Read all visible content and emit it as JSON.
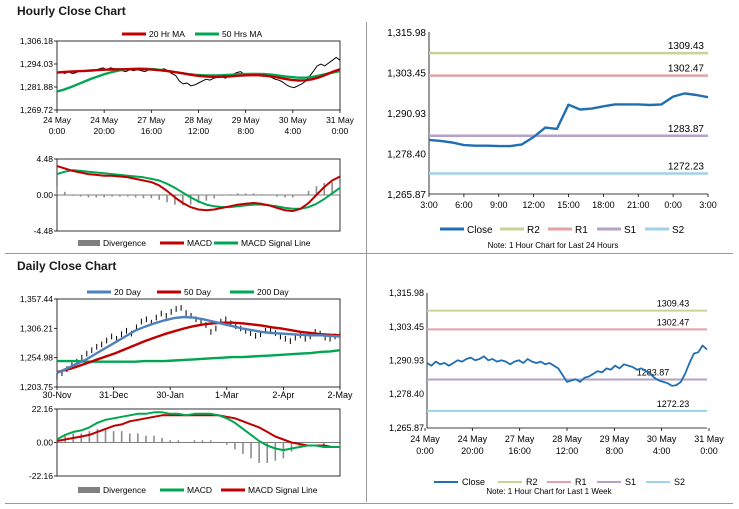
{
  "headings": {
    "hourly": "Hourly Close Chart",
    "daily": "Daily Close Chart"
  },
  "chart_data": [
    {
      "id": "hourly-price",
      "type": "line",
      "legend": [
        "20 Hr MA",
        "50 Hrs MA"
      ],
      "ylim": [
        1269.72,
        1306.18
      ],
      "yticks": [
        "1,306.18",
        "1,294.03",
        "1,281.88",
        "1,269.72"
      ],
      "xticks": [
        [
          "24 May",
          "0:00"
        ],
        [
          "24 May",
          "20:00"
        ],
        [
          "27 May",
          "16:00"
        ],
        [
          "28 May",
          "12:00"
        ],
        [
          "29 May",
          "8:00"
        ],
        [
          "30 May",
          "4:00"
        ],
        [
          "31 May",
          "0:00"
        ]
      ],
      "series": [
        {
          "name": "Close",
          "color": "#000000",
          "values": [
            1289.5,
            1290.0,
            1289.0,
            1290.0,
            1289.0,
            1289.5,
            1290.5,
            1290.0,
            1290.5,
            1291.0,
            1290.5,
            1291.5,
            1292.0,
            1291.0,
            1292.0,
            1291.5,
            1291.5,
            1290.5,
            1290.0,
            1291.0,
            1290.5,
            1291.0,
            1290.5,
            1290.0,
            1291.0,
            1291.5,
            1290.5,
            1291.0,
            1291.5,
            1290.5,
            1289.0,
            1288.0,
            1285.0,
            1283.5,
            1284.0,
            1282.5,
            1283.0,
            1284.0,
            1285.0,
            1286.0,
            1285.5,
            1286.5,
            1287.0,
            1287.5,
            1286.5,
            1288.0,
            1288.5,
            1289.5,
            1290.0,
            1288.5,
            1289.0,
            1288.5,
            1289.0,
            1288.5,
            1287.5,
            1288.0,
            1287.0,
            1286.0,
            1285.5,
            1284.5,
            1283.0,
            1282.0,
            1281.5,
            1282.5,
            1283.5,
            1285.0,
            1287.5,
            1290.0,
            1293.0,
            1294.0,
            1293.0,
            1294.5,
            1296.0,
            1297.5,
            1296.0
          ]
        },
        {
          "name": "20 Hr MA",
          "color": "#c00000",
          "values": [
            1289.5,
            1289.8,
            1290.0,
            1290.2,
            1290.4,
            1290.6,
            1290.8,
            1291.0,
            1291.1,
            1291.2,
            1291.3,
            1291.3,
            1291.3,
            1291.2,
            1291.0,
            1290.7,
            1290.3,
            1289.8,
            1289.2,
            1288.6,
            1288.0,
            1287.6,
            1287.3,
            1287.2,
            1287.3,
            1287.5,
            1287.8,
            1288.0,
            1288.1,
            1288.1,
            1287.9,
            1287.5,
            1286.9,
            1286.2,
            1285.6,
            1285.3,
            1285.4,
            1286.0,
            1287.0,
            1288.4,
            1290.0,
            1291.2
          ]
        },
        {
          "name": "50 Hrs MA",
          "color": "#00a651",
          "values": [
            1279.5,
            1280.5,
            1281.8,
            1283.3,
            1284.8,
            1286.3,
            1287.6,
            1288.8,
            1289.8,
            1290.6,
            1291.2,
            1291.5,
            1291.6,
            1291.5,
            1291.3,
            1290.9,
            1290.4,
            1289.8,
            1289.2,
            1288.7,
            1288.3,
            1288.1,
            1288.0,
            1288.0,
            1288.1,
            1288.3,
            1288.5,
            1288.7,
            1288.8,
            1288.8,
            1288.7,
            1288.4,
            1288.0,
            1287.5,
            1287.1,
            1286.8,
            1286.8,
            1287.2,
            1287.9,
            1288.8,
            1289.6,
            1290.3
          ]
        }
      ]
    },
    {
      "id": "hourly-macd",
      "type": "line",
      "legend": [
        "Divergence",
        "MACD",
        "MACD Signal Line"
      ],
      "ylim": [
        -4.48,
        4.48
      ],
      "yticks": [
        "4.48",
        "0.00",
        "-4.48"
      ],
      "series": [
        {
          "name": "MACD",
          "color": "#c00000",
          "values": [
            3.6,
            3.3,
            3.0,
            2.8,
            2.6,
            2.5,
            2.4,
            2.4,
            2.3,
            2.2,
            2.0,
            1.8,
            1.6,
            1.2,
            0.5,
            -0.3,
            -1.0,
            -1.5,
            -1.8,
            -1.9,
            -1.8,
            -1.6,
            -1.4,
            -1.2,
            -1.1,
            -1.0,
            -1.1,
            -1.3,
            -1.6,
            -1.9,
            -2.0,
            -1.7,
            -1.0,
            0.0,
            1.0,
            1.8,
            2.3
          ]
        },
        {
          "name": "MACD Signal Line",
          "color": "#00a651",
          "values": [
            2.6,
            2.9,
            3.1,
            3.0,
            2.9,
            2.8,
            2.7,
            2.6,
            2.5,
            2.4,
            2.3,
            2.2,
            2.0,
            1.8,
            1.4,
            0.9,
            0.3,
            -0.3,
            -0.8,
            -1.2,
            -1.4,
            -1.5,
            -1.5,
            -1.4,
            -1.3,
            -1.2,
            -1.2,
            -1.3,
            -1.4,
            -1.6,
            -1.7,
            -1.7,
            -1.5,
            -1.1,
            -0.5,
            0.2,
            0.9
          ]
        }
      ]
    },
    {
      "id": "hourly-levels",
      "type": "line",
      "ylim": [
        1265.87,
        1315.98
      ],
      "yticks": [
        "1,315.98",
        "1,303.45",
        "1,290.93",
        "1,278.40",
        "1,265.87"
      ],
      "xticks": [
        "3:00",
        "6:00",
        "9:00",
        "12:00",
        "15:00",
        "18:00",
        "21:00",
        "0:00",
        "3:00"
      ],
      "levels": [
        {
          "name": "R2",
          "value": 1309.43,
          "label": "1309.43",
          "color": "#c8d39a"
        },
        {
          "name": "R1",
          "value": 1302.47,
          "label": "1302.47",
          "color": "#e6a2a6"
        },
        {
          "name": "S1",
          "value": 1283.87,
          "label": "1283.87",
          "color": "#b4a2c8"
        },
        {
          "name": "S2",
          "value": 1272.23,
          "label": "1272.23",
          "color": "#9dd3e6"
        }
      ],
      "series": [
        {
          "name": "Close",
          "color": "#1f6fb2",
          "values": [
            1282.6,
            1282.3,
            1281.8,
            1281.0,
            1280.8,
            1280.8,
            1280.7,
            1280.7,
            1281.2,
            1283.5,
            1286.4,
            1286.0,
            1293.5,
            1292.0,
            1292.3,
            1293.0,
            1293.6,
            1293.6,
            1293.6,
            1293.4,
            1293.6,
            1296.0,
            1297.0,
            1296.5,
            1295.8
          ]
        },
        {
          "name": "R2",
          "color": "#c8d39a",
          "values": []
        },
        {
          "name": "R1",
          "color": "#e6a2a6",
          "values": []
        },
        {
          "name": "S1",
          "color": "#b4a2c8",
          "values": []
        },
        {
          "name": "S2",
          "color": "#9dd3e6",
          "values": []
        }
      ],
      "note": "Note: 1 Hour Chart for Last 24 Hours"
    },
    {
      "id": "daily-price",
      "type": "line",
      "legend": [
        "20 Day",
        "50 Day",
        "200 Day"
      ],
      "ylim": [
        1203.75,
        1357.44
      ],
      "yticks": [
        "1,357.44",
        "1,306.21",
        "1,254.98",
        "1,203.75"
      ],
      "xticks": [
        "30-Nov",
        "31-Dec",
        "30-Jan",
        "1-Mar",
        "2-Apr",
        "2-May"
      ],
      "series": [
        {
          "name": "Close",
          "color": "#000000",
          "values": [
            1222,
            1228,
            1235,
            1242,
            1248,
            1255,
            1262,
            1268,
            1274,
            1278,
            1285,
            1292,
            1288,
            1296,
            1302,
            1297,
            1308,
            1318,
            1322,
            1316,
            1325,
            1332,
            1328,
            1335,
            1340,
            1342,
            1333,
            1328,
            1322,
            1318,
            1312,
            1300,
            1306,
            1318,
            1322,
            1315,
            1310,
            1306,
            1302,
            1298,
            1293,
            1296,
            1302,
            1304,
            1298,
            1292,
            1288,
            1284,
            1290,
            1294,
            1288,
            1292,
            1300,
            1297,
            1290,
            1288,
            1292,
            1294
          ]
        },
        {
          "name": "20 Day",
          "color": "#4f81bd",
          "values": [
            1228,
            1236,
            1244,
            1252,
            1262,
            1272,
            1282,
            1292,
            1302,
            1309,
            1315,
            1320,
            1324,
            1326,
            1325,
            1322,
            1318,
            1314,
            1310,
            1306,
            1303,
            1300,
            1298,
            1297,
            1296,
            1295,
            1294,
            1294,
            1293,
            1292
          ]
        },
        {
          "name": "50 Day",
          "color": "#c00000",
          "values": [
            1230,
            1234,
            1239,
            1245,
            1251,
            1257,
            1263,
            1270,
            1277,
            1284,
            1290,
            1296,
            1301,
            1306,
            1310,
            1313,
            1315,
            1316,
            1316,
            1315,
            1313,
            1311,
            1308,
            1306,
            1303,
            1300,
            1298,
            1296,
            1295,
            1294
          ]
        },
        {
          "name": "200 Day",
          "color": "#00a651",
          "values": [
            1249,
            1249,
            1249,
            1248,
            1248,
            1248,
            1248,
            1248,
            1248,
            1249,
            1249,
            1249,
            1250,
            1251,
            1252,
            1253,
            1254,
            1255,
            1256,
            1256,
            1257,
            1258,
            1259,
            1260,
            1261,
            1262,
            1263,
            1265,
            1266,
            1268
          ]
        }
      ]
    },
    {
      "id": "daily-macd",
      "type": "line",
      "legend": [
        "Divergence",
        "MACD",
        "MACD Signal Line"
      ],
      "ylim": [
        -22.16,
        22.16
      ],
      "yticks": [
        "22.16",
        "0.00",
        "-22.16"
      ],
      "series": [
        {
          "name": "MACD",
          "color": "#00a651",
          "values": [
            2,
            5,
            7,
            8,
            10,
            13,
            15,
            16,
            17,
            18,
            19,
            19,
            20,
            20,
            19,
            19,
            18,
            19,
            19,
            19,
            18,
            16,
            13,
            9,
            5,
            1,
            -2,
            -4,
            -5,
            -4,
            -3,
            -2,
            -2,
            -3,
            -3,
            -3
          ]
        },
        {
          "name": "MACD Signal Line",
          "color": "#c00000",
          "values": [
            1,
            2,
            3,
            4,
            5,
            7,
            9,
            11,
            12,
            14,
            15,
            16,
            17,
            18,
            18,
            18,
            18,
            18,
            18,
            18,
            18,
            17,
            16,
            14,
            12,
            10,
            7,
            4,
            2,
            0,
            -1,
            -2,
            -2,
            -2,
            -3,
            -3
          ]
        }
      ]
    },
    {
      "id": "daily-levels",
      "type": "line",
      "ylim": [
        1265.87,
        1315.98
      ],
      "yticks": [
        "1,315.98",
        "1,303.45",
        "1,290.93",
        "1,278.40",
        "1,265.87"
      ],
      "xticks": [
        [
          "24 May",
          "0:00"
        ],
        [
          "24 May",
          "20:00"
        ],
        [
          "27 May",
          "16:00"
        ],
        [
          "28 May",
          "12:00"
        ],
        [
          "29 May",
          "8:00"
        ],
        [
          "30 May",
          "4:00"
        ],
        [
          "31 May",
          "0:00"
        ]
      ],
      "levels": [
        {
          "name": "R2",
          "value": 1309.43,
          "label": "1309.43",
          "color": "#c8d39a"
        },
        {
          "name": "R1",
          "value": 1302.47,
          "label": "1302.47",
          "color": "#e6a2a6"
        },
        {
          "name": "S1",
          "value": 1283.87,
          "label": "1283.87",
          "color": "#b4a2c8"
        },
        {
          "name": "S2",
          "value": 1272.23,
          "label": "1272.23",
          "color": "#9dd3e6"
        }
      ],
      "series": [
        {
          "name": "Close",
          "color": "#1f6fb2",
          "values": [
            1290.0,
            1289.0,
            1290.5,
            1289.5,
            1290.0,
            1289.0,
            1290.0,
            1291.0,
            1290.5,
            1291.5,
            1292.0,
            1291.0,
            1291.5,
            1292.5,
            1291.0,
            1291.5,
            1290.5,
            1291.0,
            1290.5,
            1289.5,
            1290.5,
            1291.0,
            1290.0,
            1291.5,
            1290.5,
            1290.0,
            1290.5,
            1289.5,
            1290.0,
            1289.0,
            1288.0,
            1285.5,
            1283.0,
            1283.5,
            1284.0,
            1283.0,
            1284.5,
            1285.0,
            1286.0,
            1287.0,
            1286.5,
            1288.0,
            1287.5,
            1289.0,
            1288.0,
            1289.5,
            1289.0,
            1288.5,
            1287.5,
            1288.0,
            1287.0,
            1286.0,
            1284.5,
            1283.5,
            1283.0,
            1282.5,
            1281.5,
            1281.8,
            1283.0,
            1286.0,
            1290.0,
            1293.5,
            1294.0,
            1296.5,
            1295.0
          ]
        },
        {
          "name": "R2",
          "color": "#c8d39a",
          "values": []
        },
        {
          "name": "R1",
          "color": "#e6a2a6",
          "values": []
        },
        {
          "name": "S1",
          "color": "#b4a2c8",
          "values": []
        },
        {
          "name": "S2",
          "color": "#9dd3e6",
          "values": []
        }
      ],
      "note": "Note: 1 Hour Chart for Last 1 Week"
    }
  ]
}
